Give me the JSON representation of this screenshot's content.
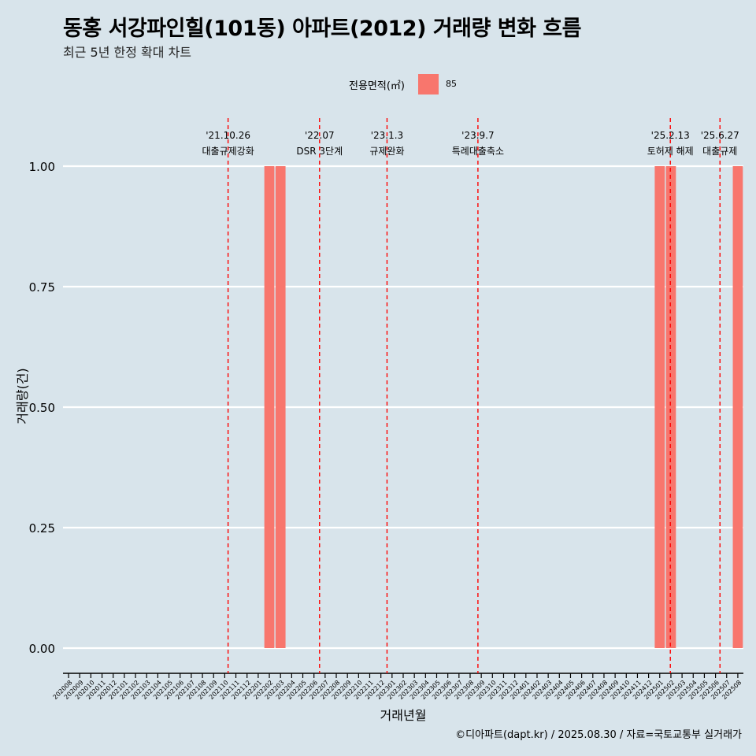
{
  "header": {
    "title": "동홍 서강파인힐(101동) 아파트(2012) 거래량 변화 흐름",
    "subtitle": "최근 5년 한정 확대 차트"
  },
  "legend": {
    "title": "전용면적(㎡)",
    "items": [
      {
        "label": "85",
        "color": "#f8766d"
      }
    ]
  },
  "footer": {
    "caption": "©디아파트(dapt.kr) / 2025.08.30 / 자료=국토교통부 실거래가"
  },
  "chart_data": {
    "type": "bar",
    "title": "동홍 서강파인힐(101동) 아파트(2012) 거래량 변화 흐름",
    "subtitle": "최근 5년 한정 확대 차트",
    "xlabel": "거래년월",
    "ylabel": "거래량(건)",
    "ylim": [
      0,
      1
    ],
    "yticks": [
      "0.00",
      "0.25",
      "0.50",
      "0.75",
      "1.00"
    ],
    "grid": true,
    "legend_position": "top",
    "categories": [
      "202008",
      "202009",
      "202010",
      "202011",
      "202012",
      "202101",
      "202102",
      "202103",
      "202104",
      "202105",
      "202106",
      "202107",
      "202108",
      "202109",
      "202110",
      "202111",
      "202112",
      "202201",
      "202202",
      "202203",
      "202204",
      "202205",
      "202206",
      "202207",
      "202208",
      "202209",
      "202210",
      "202211",
      "202212",
      "202301",
      "202302",
      "202303",
      "202304",
      "202305",
      "202306",
      "202307",
      "202308",
      "202309",
      "202310",
      "202311",
      "202312",
      "202401",
      "202402",
      "202403",
      "202404",
      "202405",
      "202406",
      "202407",
      "202408",
      "202409",
      "202410",
      "202411",
      "202412",
      "202501",
      "202502",
      "202503",
      "202504",
      "202505",
      "202506",
      "202507",
      "202508"
    ],
    "series": [
      {
        "name": "85",
        "color": "#f8766d",
        "values": [
          0,
          0,
          0,
          0,
          0,
          0,
          0,
          0,
          0,
          0,
          0,
          0,
          0,
          0,
          0,
          0,
          0,
          0,
          1,
          1,
          0,
          0,
          0,
          0,
          0,
          0,
          0,
          0,
          0,
          0,
          0,
          0,
          0,
          0,
          0,
          0,
          0,
          0,
          0,
          0,
          0,
          0,
          0,
          0,
          0,
          0,
          0,
          0,
          0,
          0,
          0,
          0,
          0,
          1,
          1,
          0,
          0,
          0,
          0,
          0,
          1
        ]
      }
    ],
    "annotations": [
      {
        "date": "'21.10.26",
        "label": "대출규제강화",
        "month": "202110",
        "day_fraction": 0.8
      },
      {
        "date": "'22.07",
        "label": "DSR 3단계",
        "month": "202207",
        "day_fraction": 0.0
      },
      {
        "date": "'23.1.3",
        "label": "규제완화",
        "month": "202301",
        "day_fraction": 0.05
      },
      {
        "date": "'23.9.7",
        "label": "특례대출축소",
        "month": "202309",
        "day_fraction": 0.2
      },
      {
        "date": "'25.2.13",
        "label": "토허제 해제",
        "month": "202502",
        "day_fraction": 0.45
      },
      {
        "date": "'25.6.27",
        "label": "대출규제",
        "month": "202506",
        "day_fraction": 0.9
      }
    ],
    "annotation_color": "#ff0000"
  }
}
